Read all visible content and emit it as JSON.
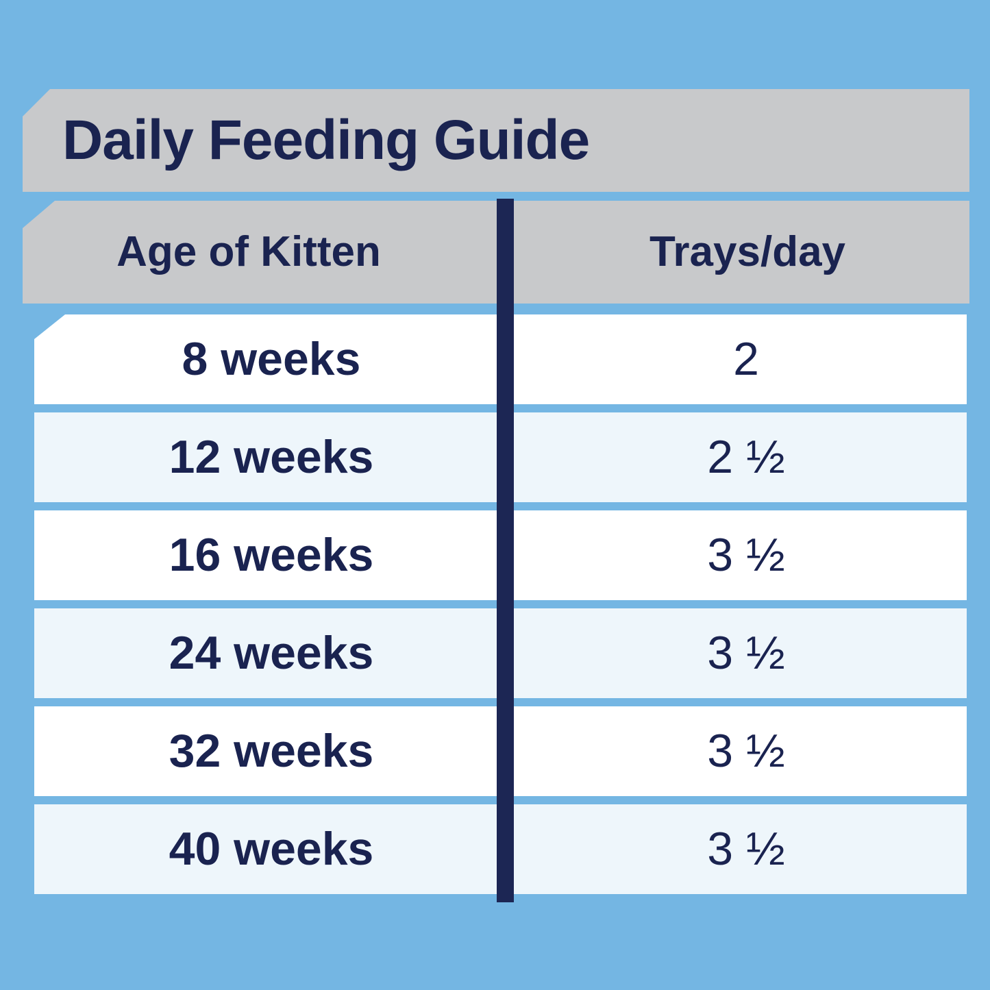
{
  "title": "Daily Feeding Guide",
  "columns": [
    "Age of Kitten",
    "Trays/day"
  ],
  "rows": [
    {
      "age": "8 weeks",
      "trays": "2"
    },
    {
      "age": "12 weeks",
      "trays": "2 ½"
    },
    {
      "age": "16 weeks",
      "trays": "3 ½"
    },
    {
      "age": "24 weeks",
      "trays": "3 ½"
    },
    {
      "age": "32 weeks",
      "trays": "3 ½"
    },
    {
      "age": "40 weeks",
      "trays": "3 ½"
    }
  ],
  "colors": {
    "background": "#74b6e3",
    "header": "#c8c9cb",
    "text": "#1a2350",
    "row_alt": "#eef6fb",
    "divider": "#1c2654"
  }
}
